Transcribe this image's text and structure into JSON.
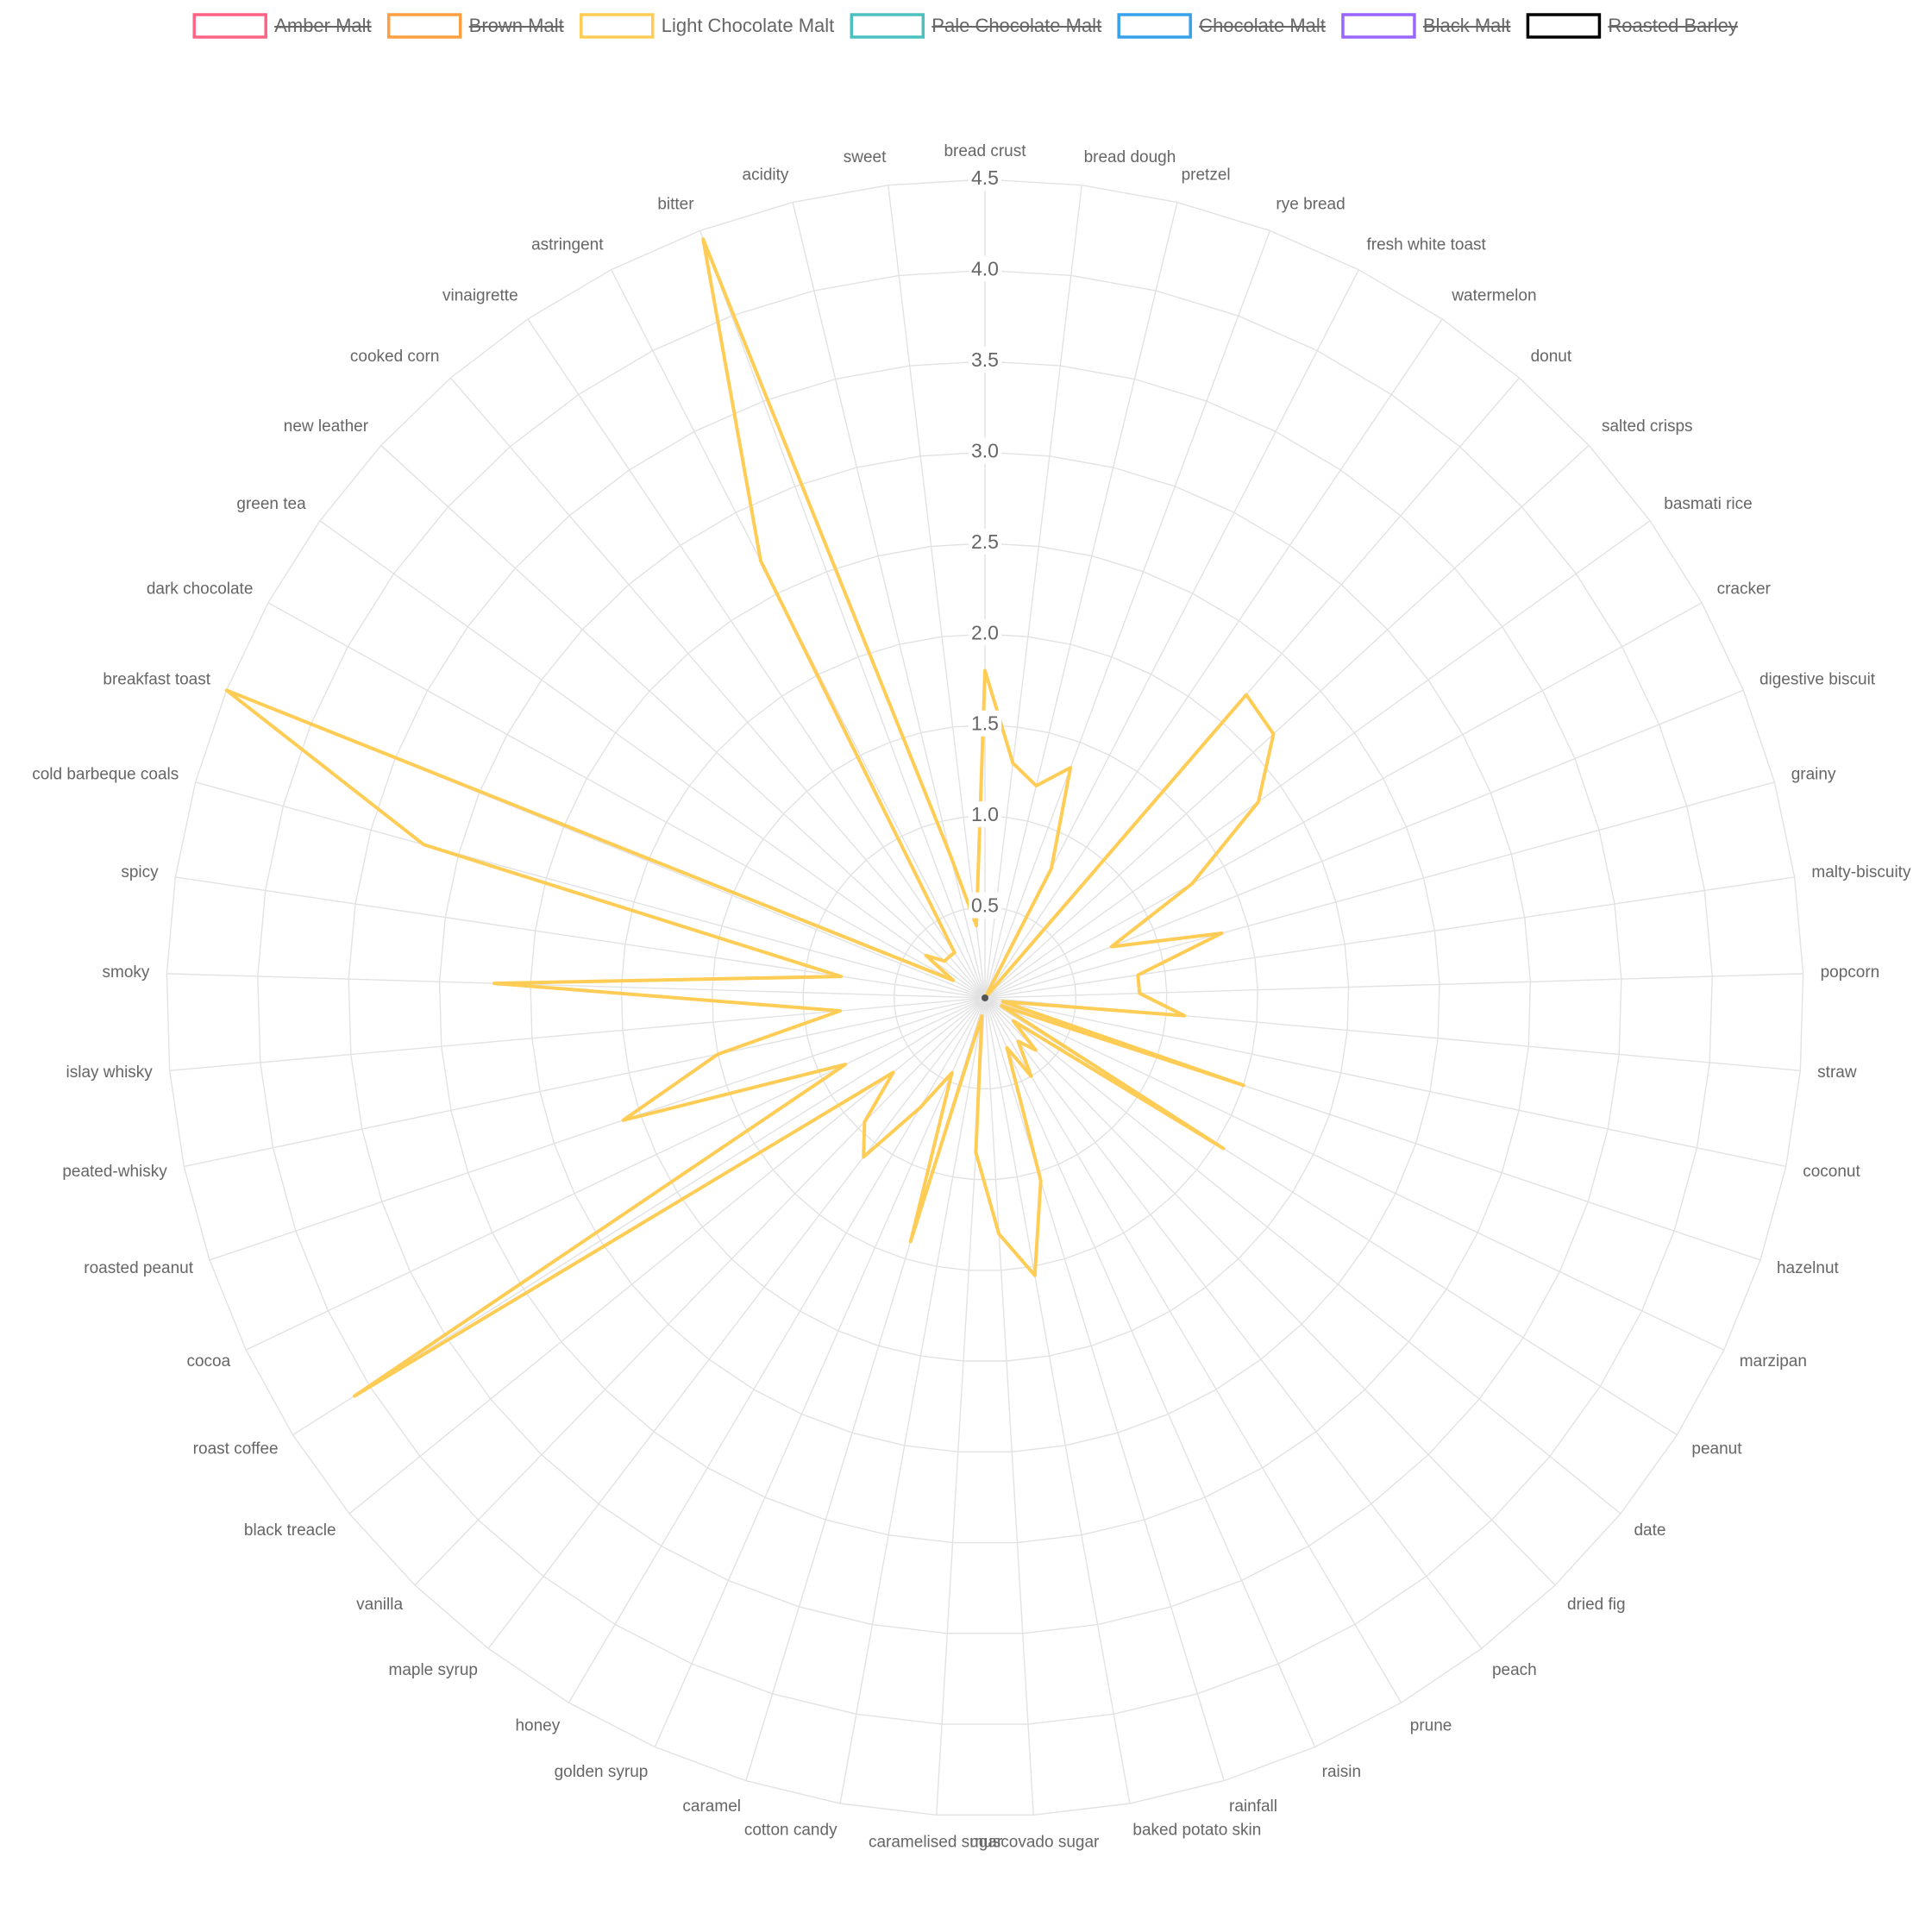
{
  "chart_data": {
    "type": "radar",
    "legend": "top",
    "grid": true,
    "categories": [
      "bread crust",
      "bread dough",
      "pretzel",
      "rye bread",
      "fresh white toast",
      "watermelon",
      "donut",
      "salted crisps",
      "basmati rice",
      "cracker",
      "digestive biscuit",
      "grainy",
      "malty-biscuity",
      "popcorn",
      "straw",
      "coconut",
      "hazelnut",
      "marzipan",
      "peanut",
      "date",
      "dried fig",
      "peach",
      "prune",
      "raisin",
      "rainfall",
      "baked potato skin",
      "muscovado sugar",
      "caramelised sugar",
      "cotton candy",
      "caramel",
      "golden syrup",
      "honey",
      "maple syrup",
      "vanilla",
      "black treacle",
      "roast coffee",
      "cocoa",
      "roasted peanut",
      "peated-whisky",
      "islay whisky",
      "smoky",
      "spicy",
      "cold barbeque coals",
      "breakfast toast",
      "dark chocolate",
      "green tea",
      "new leather",
      "cooked corn",
      "vinaigrette",
      "astringent",
      "bitter",
      "acidity",
      "sweet"
    ],
    "rlim": [
      0,
      4.5
    ],
    "rticks": [
      0.5,
      {
        "value": 1,
        "label": "1.0"
      },
      1.5,
      {
        "value": 2,
        "label": "2.0"
      },
      2.5,
      {
        "value": 3,
        "label": "3.0"
      },
      3.5,
      {
        "value": 4,
        "label": "4.0"
      },
      4.5
    ],
    "series": [
      {
        "name": "Amber Malt",
        "color": "#ff6384",
        "hidden": true
      },
      {
        "name": "Brown Malt",
        "color": "#ff9f40",
        "hidden": true
      },
      {
        "name": "Light Chocolate Malt",
        "color": "#ffcd56",
        "hidden": false,
        "values": [
          1.8,
          1.3,
          1.2,
          1.35,
          0.8,
          0,
          2.2,
          2.15,
          1.85,
          1.3,
          0.75,
          1.35,
          0.85,
          0.85,
          1.1,
          0.1,
          1.5,
          0.1,
          1.55,
          0.2,
          0.4,
          0.3,
          0.5,
          0.3,
          1.05,
          1.55,
          1.3,
          0.85,
          0.1,
          1.4,
          0.45,
          0.7,
          1.1,
          0.95,
          0.65,
          4.1,
          0.85,
          2.1,
          1.5,
          0.8,
          2.7,
          0.8,
          3.2,
          4.5,
          0.2,
          0.4,
          0.3,
          0.3,
          0.3,
          2.7,
          4.45,
          0.8,
          0.4
        ]
      },
      {
        "name": "Pale Chocolate Malt",
        "color": "#4bc0c0",
        "hidden": true
      },
      {
        "name": "Chocolate Malt",
        "color": "#36a2eb",
        "hidden": true
      },
      {
        "name": "Black Malt",
        "color": "#9966ff",
        "hidden": true
      },
      {
        "name": "Roasted Barley",
        "color": "#000000",
        "hidden": true
      }
    ]
  }
}
